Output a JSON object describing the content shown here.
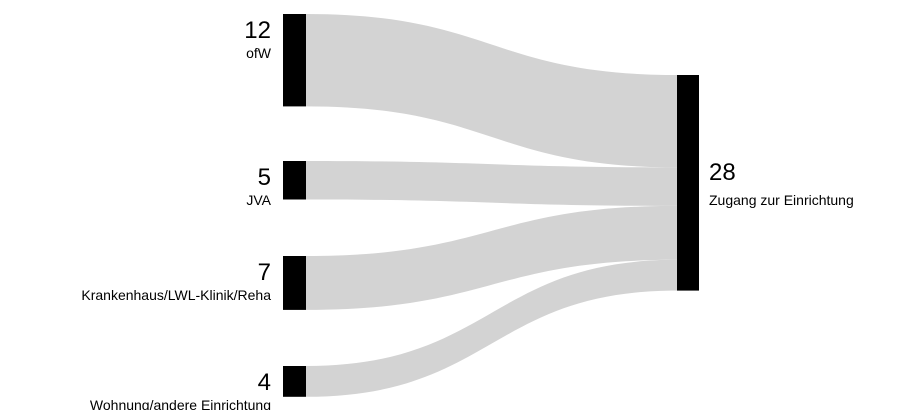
{
  "chart_data": {
    "type": "sankey",
    "sources": [
      {
        "label": "ofW",
        "value": 12
      },
      {
        "label": "JVA",
        "value": 5
      },
      {
        "label": "Krankenhaus/LWL-Klinik/Reha",
        "value": 7
      },
      {
        "label": "Wohnung/andere Einrichtung",
        "value": 4
      }
    ],
    "target": {
      "label": "Zugang zur Einrichtung",
      "value": 28
    },
    "colors": {
      "node": "#000000",
      "flow": "#d3d3d3"
    }
  }
}
